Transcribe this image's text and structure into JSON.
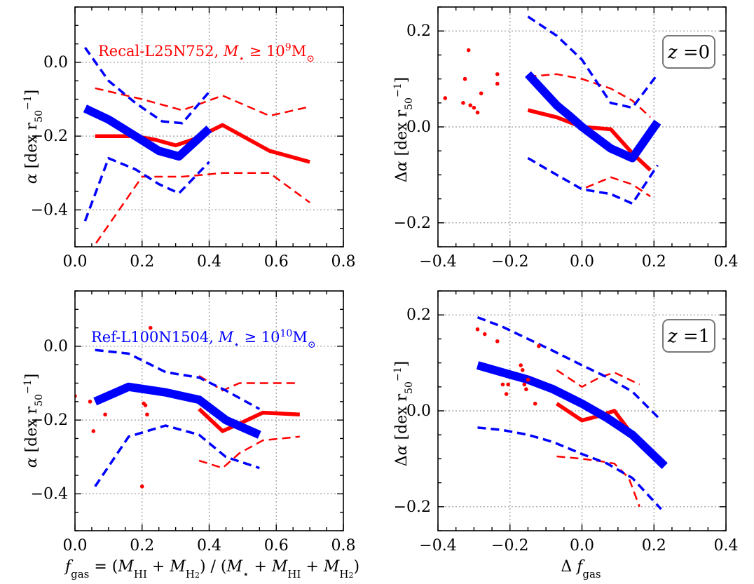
{
  "figure": {
    "xlabel_left": "f_gas = (M_HI + M_H2) / (M_⋆ + M_HI + M_H2)",
    "xlabel_right": "Δ f_gas",
    "ylabel_left": "α [dex r50⁻¹]",
    "ylabel_right": "Δα [dex r50⁻¹]",
    "colors": {
      "recal": "#ff0000",
      "ref": "#0000ff",
      "grid": "#999999"
    }
  },
  "chart_data": [
    {
      "type": "line",
      "panel": "top-left",
      "xlim": [
        0.0,
        0.8
      ],
      "ylim": [
        -0.5,
        0.15
      ],
      "xticks": [
        "0.0",
        "0.2",
        "0.4",
        "0.6",
        "0.8"
      ],
      "yticks": [
        "−0.4",
        "−0.2",
        "0.0"
      ],
      "ytick_values": [
        -0.4,
        -0.2,
        0.0
      ],
      "xtick_values": [
        0.0,
        0.2,
        0.4,
        0.6,
        0.8
      ],
      "annotation": {
        "text": "Recal-L25N752, M⋆ ≥ 10⁹M⊙",
        "color": "red"
      },
      "series": [
        {
          "name": "recal-median",
          "color": "red",
          "width": "thick",
          "dash": "solid",
          "x": [
            0.06,
            0.18,
            0.24,
            0.3,
            0.35,
            0.44,
            0.58,
            0.7
          ],
          "y": [
            -0.2,
            -0.2,
            -0.21,
            -0.225,
            -0.21,
            -0.17,
            -0.24,
            -0.27
          ]
        },
        {
          "name": "recal-upper",
          "color": "red",
          "width": "thin",
          "dash": "dashed",
          "x": [
            0.06,
            0.2,
            0.24,
            0.32,
            0.44,
            0.58,
            0.7
          ],
          "y": [
            -0.07,
            -0.1,
            -0.11,
            -0.13,
            -0.09,
            -0.145,
            -0.12
          ]
        },
        {
          "name": "recal-lower",
          "color": "red",
          "width": "thin",
          "dash": "dashed",
          "x": [
            0.04,
            0.2,
            0.24,
            0.32,
            0.44,
            0.58,
            0.7
          ],
          "y": [
            -0.52,
            -0.31,
            -0.31,
            -0.31,
            -0.3,
            -0.3,
            -0.38
          ]
        },
        {
          "name": "ref-median",
          "color": "blue",
          "width": "extra-thick",
          "dash": "solid",
          "x": [
            0.03,
            0.1,
            0.18,
            0.25,
            0.31,
            0.4
          ],
          "y": [
            -0.125,
            -0.155,
            -0.2,
            -0.24,
            -0.255,
            -0.18
          ]
        },
        {
          "name": "ref-upper",
          "color": "blue",
          "width": "medium",
          "dash": "dashed",
          "x": [
            0.03,
            0.1,
            0.18,
            0.26,
            0.32,
            0.4
          ],
          "y": [
            0.04,
            -0.05,
            -0.11,
            -0.16,
            -0.165,
            -0.08
          ]
        },
        {
          "name": "ref-lower",
          "color": "blue",
          "width": "medium",
          "dash": "dashed",
          "x": [
            0.03,
            0.1,
            0.18,
            0.25,
            0.31,
            0.4
          ],
          "y": [
            -0.43,
            -0.26,
            -0.29,
            -0.33,
            -0.355,
            -0.27
          ]
        }
      ],
      "scatter": []
    },
    {
      "type": "line",
      "panel": "top-right",
      "xlim": [
        -0.4,
        0.4
      ],
      "ylim": [
        -0.25,
        0.25
      ],
      "xticks": [
        "−0.4",
        "−0.2",
        "0.0",
        "0.2",
        "0.4"
      ],
      "xtick_values": [
        -0.4,
        -0.2,
        0.0,
        0.2,
        0.4
      ],
      "yticks": [
        "−0.2",
        "0.0",
        "0.2"
      ],
      "ytick_values": [
        -0.2,
        0.0,
        0.2
      ],
      "zlabel": "z =0",
      "series": [
        {
          "name": "recal-median",
          "color": "red",
          "width": "thick",
          "dash": "solid",
          "x": [
            -0.15,
            -0.07,
            0.0,
            0.08,
            0.14,
            0.19
          ],
          "y": [
            0.035,
            0.02,
            0.0,
            -0.005,
            -0.055,
            -0.09
          ]
        },
        {
          "name": "recal-upper",
          "color": "red",
          "width": "thin",
          "dash": "dashed",
          "x": [
            -0.15,
            -0.07,
            0.0,
            0.08,
            0.14,
            0.19
          ],
          "y": [
            0.105,
            0.11,
            0.1,
            0.08,
            0.055,
            0.02
          ]
        },
        {
          "name": "recal-lower",
          "color": "red",
          "width": "thin",
          "dash": "dashed",
          "x": [
            -0.15,
            -0.07,
            0.0,
            0.08,
            0.14,
            0.19
          ],
          "y": [
            -0.065,
            -0.1,
            -0.13,
            -0.105,
            -0.12,
            -0.145
          ]
        },
        {
          "name": "ref-median",
          "color": "blue",
          "width": "extra-thick",
          "dash": "solid",
          "x": [
            -0.15,
            -0.07,
            -0.03,
            0.0,
            0.08,
            0.14,
            0.21
          ],
          "y": [
            0.11,
            0.045,
            0.02,
            0.0,
            -0.045,
            -0.065,
            0.01
          ]
        },
        {
          "name": "ref-upper",
          "color": "blue",
          "width": "medium",
          "dash": "dashed",
          "x": [
            -0.15,
            -0.07,
            0.0,
            0.08,
            0.14,
            0.21
          ],
          "y": [
            0.23,
            0.19,
            0.14,
            0.05,
            0.04,
            0.11
          ]
        },
        {
          "name": "ref-lower",
          "color": "blue",
          "width": "medium",
          "dash": "dashed",
          "x": [
            -0.15,
            -0.07,
            0.0,
            0.08,
            0.14,
            0.21
          ],
          "y": [
            -0.065,
            -0.1,
            -0.13,
            -0.14,
            -0.16,
            -0.08
          ]
        }
      ],
      "scatter": [
        {
          "color": "red",
          "x": [
            -0.38,
            -0.315,
            -0.325,
            -0.33,
            -0.3,
            -0.31,
            -0.28,
            -0.235,
            -0.235,
            -0.29
          ],
          "y": [
            0.06,
            0.16,
            0.1,
            0.05,
            0.04,
            0.045,
            0.07,
            0.11,
            0.09,
            0.03
          ]
        }
      ]
    },
    {
      "type": "line",
      "panel": "bottom-left",
      "xlim": [
        0.0,
        0.8
      ],
      "ylim": [
        -0.5,
        0.15
      ],
      "xticks": [
        "0.0",
        "0.2",
        "0.4",
        "0.6",
        "0.8"
      ],
      "xtick_values": [
        0.0,
        0.2,
        0.4,
        0.6,
        0.8
      ],
      "yticks": [
        "−0.4",
        "−0.2",
        "0.0"
      ],
      "ytick_values": [
        -0.4,
        -0.2,
        0.0
      ],
      "annotation": {
        "text": "Ref-L100N1504, M⋆ ≥ 10¹⁰M⊙",
        "color": "blue"
      },
      "series": [
        {
          "name": "recal-median",
          "color": "red",
          "width": "thick",
          "dash": "solid",
          "x": [
            0.37,
            0.44,
            0.49,
            0.56,
            0.67
          ],
          "y": [
            -0.17,
            -0.23,
            -0.21,
            -0.18,
            -0.185
          ]
        },
        {
          "name": "recal-upper",
          "color": "red",
          "width": "thin",
          "dash": "dashed",
          "x": [
            0.37,
            0.44,
            0.49,
            0.56,
            0.67
          ],
          "y": [
            -0.08,
            -0.12,
            -0.1,
            -0.1,
            -0.1
          ]
        },
        {
          "name": "recal-lower",
          "color": "red",
          "width": "thin",
          "dash": "dashed",
          "x": [
            0.37,
            0.44,
            0.49,
            0.56,
            0.67
          ],
          "y": [
            -0.31,
            -0.33,
            -0.29,
            -0.255,
            -0.245
          ]
        },
        {
          "name": "ref-median",
          "color": "blue",
          "width": "extra-thick",
          "dash": "solid",
          "x": [
            0.06,
            0.16,
            0.27,
            0.37,
            0.45,
            0.55
          ],
          "y": [
            -0.15,
            -0.11,
            -0.125,
            -0.145,
            -0.2,
            -0.24
          ]
        },
        {
          "name": "ref-upper",
          "color": "blue",
          "width": "medium",
          "dash": "dashed",
          "x": [
            0.06,
            0.16,
            0.27,
            0.37,
            0.45,
            0.55
          ],
          "y": [
            -0.01,
            -0.02,
            -0.07,
            -0.085,
            -0.12,
            -0.17
          ]
        },
        {
          "name": "ref-lower",
          "color": "blue",
          "width": "medium",
          "dash": "dashed",
          "x": [
            0.06,
            0.16,
            0.27,
            0.37,
            0.45,
            0.55
          ],
          "y": [
            -0.38,
            -0.245,
            -0.215,
            -0.24,
            -0.3,
            -0.33
          ]
        }
      ],
      "scatter": [
        {
          "color": "red",
          "x": [
            0.0,
            0.045,
            0.055,
            0.09,
            0.205,
            0.21,
            0.215,
            0.225,
            0.2
          ],
          "y": [
            -0.135,
            -0.15,
            -0.23,
            -0.185,
            -0.155,
            -0.16,
            -0.185,
            0.05,
            -0.38
          ]
        }
      ]
    },
    {
      "type": "line",
      "panel": "bottom-right",
      "xlim": [
        -0.4,
        0.4
      ],
      "ylim": [
        -0.25,
        0.25
      ],
      "xticks": [
        "−0.4",
        "−0.2",
        "0.0",
        "0.2",
        "0.4"
      ],
      "xtick_values": [
        -0.4,
        -0.2,
        0.0,
        0.2,
        0.4
      ],
      "yticks": [
        "−0.2",
        "0.0",
        "0.2"
      ],
      "ytick_values": [
        -0.2,
        0.0,
        0.2
      ],
      "zlabel": "z =1",
      "series": [
        {
          "name": "recal-median",
          "color": "red",
          "width": "thick",
          "dash": "solid",
          "x": [
            -0.07,
            0.0,
            0.05,
            0.09,
            0.13
          ],
          "y": [
            0.015,
            -0.02,
            -0.01,
            0.0,
            -0.04
          ]
        },
        {
          "name": "recal-upper",
          "color": "red",
          "width": "thin",
          "dash": "dashed",
          "x": [
            -0.07,
            0.0,
            0.05,
            0.09,
            0.16
          ],
          "y": [
            0.085,
            0.05,
            0.07,
            0.08,
            0.055
          ]
        },
        {
          "name": "recal-lower",
          "color": "red",
          "width": "thin",
          "dash": "dashed",
          "x": [
            -0.07,
            0.0,
            0.05,
            0.09,
            0.13,
            0.16
          ],
          "y": [
            -0.095,
            -0.1,
            -0.105,
            -0.11,
            -0.14,
            -0.2
          ]
        },
        {
          "name": "ref-median",
          "color": "blue",
          "width": "extra-thick",
          "dash": "solid",
          "x": [
            -0.29,
            -0.22,
            -0.15,
            -0.08,
            0.0,
            0.07,
            0.14,
            0.23
          ],
          "y": [
            0.095,
            0.08,
            0.065,
            0.045,
            0.015,
            -0.015,
            -0.05,
            -0.115
          ]
        },
        {
          "name": "ref-upper",
          "color": "blue",
          "width": "medium",
          "dash": "dashed",
          "x": [
            -0.29,
            -0.22,
            -0.15,
            -0.08,
            0.0,
            0.07,
            0.14,
            0.22
          ],
          "y": [
            0.195,
            0.175,
            0.15,
            0.125,
            0.095,
            0.07,
            0.04,
            -0.02
          ]
        },
        {
          "name": "ref-lower",
          "color": "blue",
          "width": "medium",
          "dash": "dashed",
          "x": [
            -0.29,
            -0.22,
            -0.15,
            -0.08,
            0.0,
            0.07,
            0.14,
            0.22
          ],
          "y": [
            -0.035,
            -0.04,
            -0.05,
            -0.065,
            -0.09,
            -0.11,
            -0.14,
            -0.205
          ]
        }
      ],
      "scatter": [
        {
          "color": "red",
          "x": [
            -0.29,
            -0.27,
            -0.235,
            -0.22,
            -0.205,
            -0.21,
            -0.17,
            -0.165,
            -0.16,
            -0.155,
            -0.15,
            -0.12,
            -0.13
          ],
          "y": [
            0.17,
            0.16,
            0.145,
            0.055,
            0.055,
            0.035,
            0.095,
            0.085,
            0.055,
            0.045,
            0.065,
            0.135,
            0.015
          ]
        }
      ]
    }
  ]
}
